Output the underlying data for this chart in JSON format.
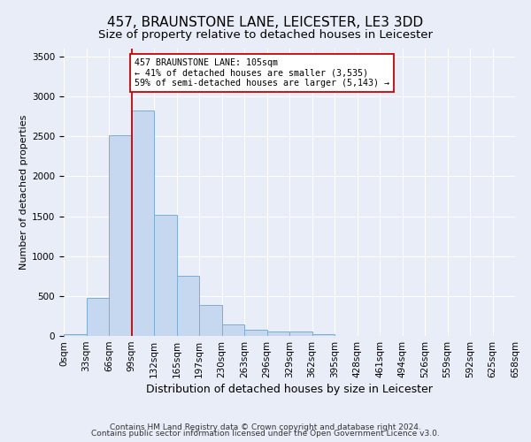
{
  "title": "457, BRAUNSTONE LANE, LEICESTER, LE3 3DD",
  "subtitle": "Size of property relative to detached houses in Leicester",
  "xlabel": "Distribution of detached houses by size in Leicester",
  "ylabel": "Number of detached properties",
  "bar_values": [
    25,
    480,
    2510,
    2820,
    1520,
    750,
    385,
    145,
    75,
    55,
    55,
    25,
    0,
    0,
    0,
    0,
    0,
    0,
    0,
    0
  ],
  "x_labels": [
    "0sqm",
    "33sqm",
    "66sqm",
    "99sqm",
    "132sqm",
    "165sqm",
    "197sqm",
    "230sqm",
    "263sqm",
    "296sqm",
    "329sqm",
    "362sqm",
    "395sqm",
    "428sqm",
    "461sqm",
    "494sqm",
    "526sqm",
    "559sqm",
    "592sqm",
    "625sqm",
    "658sqm"
  ],
  "bar_color": "#c5d8f0",
  "bar_edge_color": "#7badd4",
  "vline_x_index": 3,
  "vline_color": "#cc0000",
  "annotation_line1": "457 BRAUNSTONE LANE: 105sqm",
  "annotation_line2": "← 41% of detached houses are smaller (3,535)",
  "annotation_line3": "59% of semi-detached houses are larger (5,143) →",
  "annotation_box_color": "#ffffff",
  "annotation_box_edge": "#cc0000",
  "ylim": [
    0,
    3600
  ],
  "yticks": [
    0,
    500,
    1000,
    1500,
    2000,
    2500,
    3000,
    3500
  ],
  "background_color": "#e8edf8",
  "grid_color": "#ffffff",
  "footer1": "Contains HM Land Registry data © Crown copyright and database right 2024.",
  "footer2": "Contains public sector information licensed under the Open Government Licence v3.0.",
  "title_fontsize": 11,
  "subtitle_fontsize": 9.5,
  "xlabel_fontsize": 9,
  "ylabel_fontsize": 8,
  "tick_fontsize": 7.5,
  "footer_fontsize": 6.5
}
